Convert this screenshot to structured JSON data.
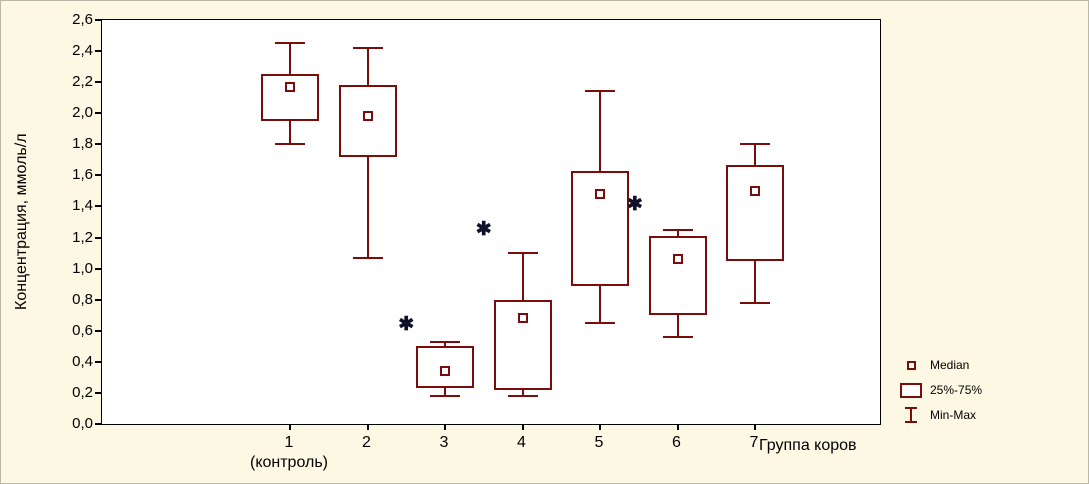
{
  "chart_data": {
    "type": "box",
    "title": "",
    "ylabel": "Концентрация, ммоль/л",
    "xlabel": "Группа коров",
    "ylim": [
      0,
      2.6
    ],
    "ytick_step": 0.2,
    "ytick_labels": [
      "0,0",
      "0,2",
      "0,4",
      "0,6",
      "0,8",
      "1,0",
      "1,2",
      "1,4",
      "1,6",
      "1,8",
      "2,0",
      "2,2",
      "2,4",
      "2,6"
    ],
    "grid": false,
    "categories": [
      "1",
      "2",
      "3",
      "4",
      "5",
      "6",
      "7"
    ],
    "category_sublabels": {
      "1": "(контроль)"
    },
    "series": [
      {
        "group": "1",
        "median": 2.17,
        "q1": 1.95,
        "q3": 2.25,
        "min": 1.8,
        "max": 2.45
      },
      {
        "group": "2",
        "median": 1.98,
        "q1": 1.72,
        "q3": 2.18,
        "min": 1.07,
        "max": 2.42
      },
      {
        "group": "3",
        "median": 0.34,
        "q1": 0.23,
        "q3": 0.5,
        "min": 0.18,
        "max": 0.53
      },
      {
        "group": "4",
        "median": 0.68,
        "q1": 0.22,
        "q3": 0.8,
        "min": 0.18,
        "max": 1.1
      },
      {
        "group": "5",
        "median": 1.48,
        "q1": 0.89,
        "q3": 1.63,
        "min": 0.65,
        "max": 2.14
      },
      {
        "group": "6",
        "median": 1.06,
        "q1": 0.7,
        "q3": 1.21,
        "min": 0.56,
        "max": 1.25
      },
      {
        "group": "7",
        "median": 1.5,
        "q1": 1.05,
        "q3": 1.67,
        "min": 0.78,
        "max": 1.8
      }
    ],
    "annotations": [
      {
        "symbol": "✱",
        "x": 2.5,
        "y": 0.62
      },
      {
        "symbol": "✱",
        "x": 3.5,
        "y": 1.23
      },
      {
        "symbol": "✱",
        "x": 5.45,
        "y": 1.39
      }
    ],
    "legend": {
      "position": "bottom-right",
      "items": [
        {
          "icon": "median-marker",
          "label": "Median"
        },
        {
          "icon": "iqr-box",
          "label": "25%-75%"
        },
        {
          "icon": "whisker",
          "label": "Min-Max"
        }
      ]
    },
    "colors": {
      "box": "#7a0c0c",
      "annotation": "#10102a",
      "axis": "#000000",
      "plot_bg": "#ffffff",
      "figure_bg": "#fcf8e3"
    }
  }
}
